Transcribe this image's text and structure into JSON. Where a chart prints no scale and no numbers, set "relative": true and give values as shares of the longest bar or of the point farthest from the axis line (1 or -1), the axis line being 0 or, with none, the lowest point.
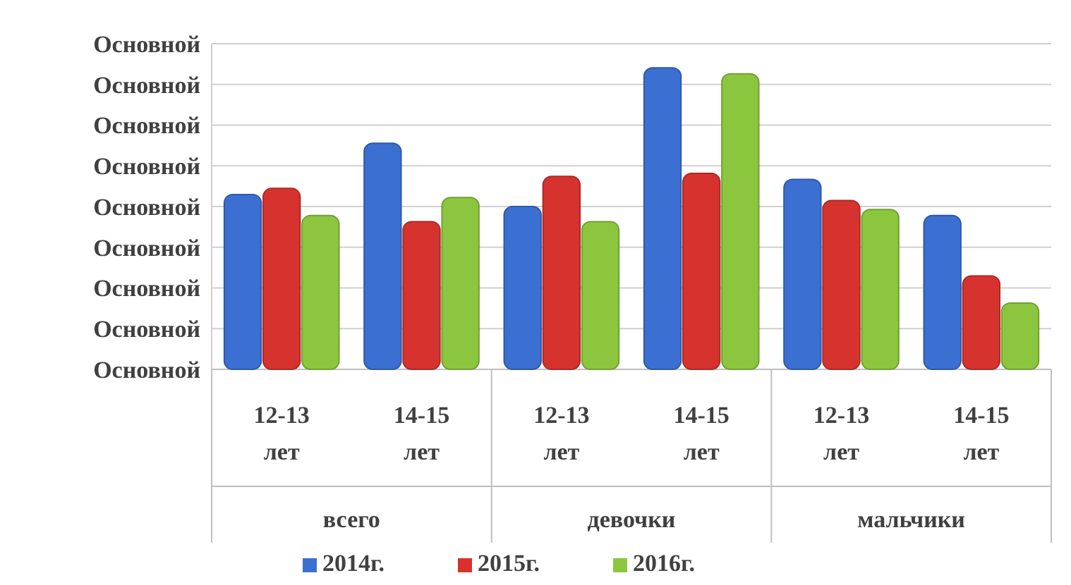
{
  "chart_data": {
    "type": "bar",
    "relative": true,
    "categories": [
      "12-13\nлет",
      "14-15\nлет",
      "12-13\nлет",
      "14-15\nлет",
      "12-13\nлет",
      "14-15\nлет"
    ],
    "series": [
      {
        "name": "2014г.",
        "color": "#3b6fd1",
        "values": [
          0.58,
          0.75,
          0.54,
          1,
          0.63,
          0.51
        ]
      },
      {
        "name": "2015г.",
        "color": "#d7332e",
        "values": [
          0.6,
          0.49,
          0.64,
          0.65,
          0.56,
          0.31
        ]
      },
      {
        "name": "2016г.",
        "color": "#8cc63f",
        "values": [
          0.51,
          0.57,
          0.49,
          0.98,
          0.53,
          0.22
        ]
      }
    ],
    "annotations": [
      "Основной",
      "Основной",
      "Основной",
      "Основной",
      "Основной",
      "Основной",
      "Основной",
      "Основной",
      "Основной",
      "всего",
      "девочки",
      "мальчики"
    ],
    "grid": "y",
    "legend": "bottom"
  }
}
